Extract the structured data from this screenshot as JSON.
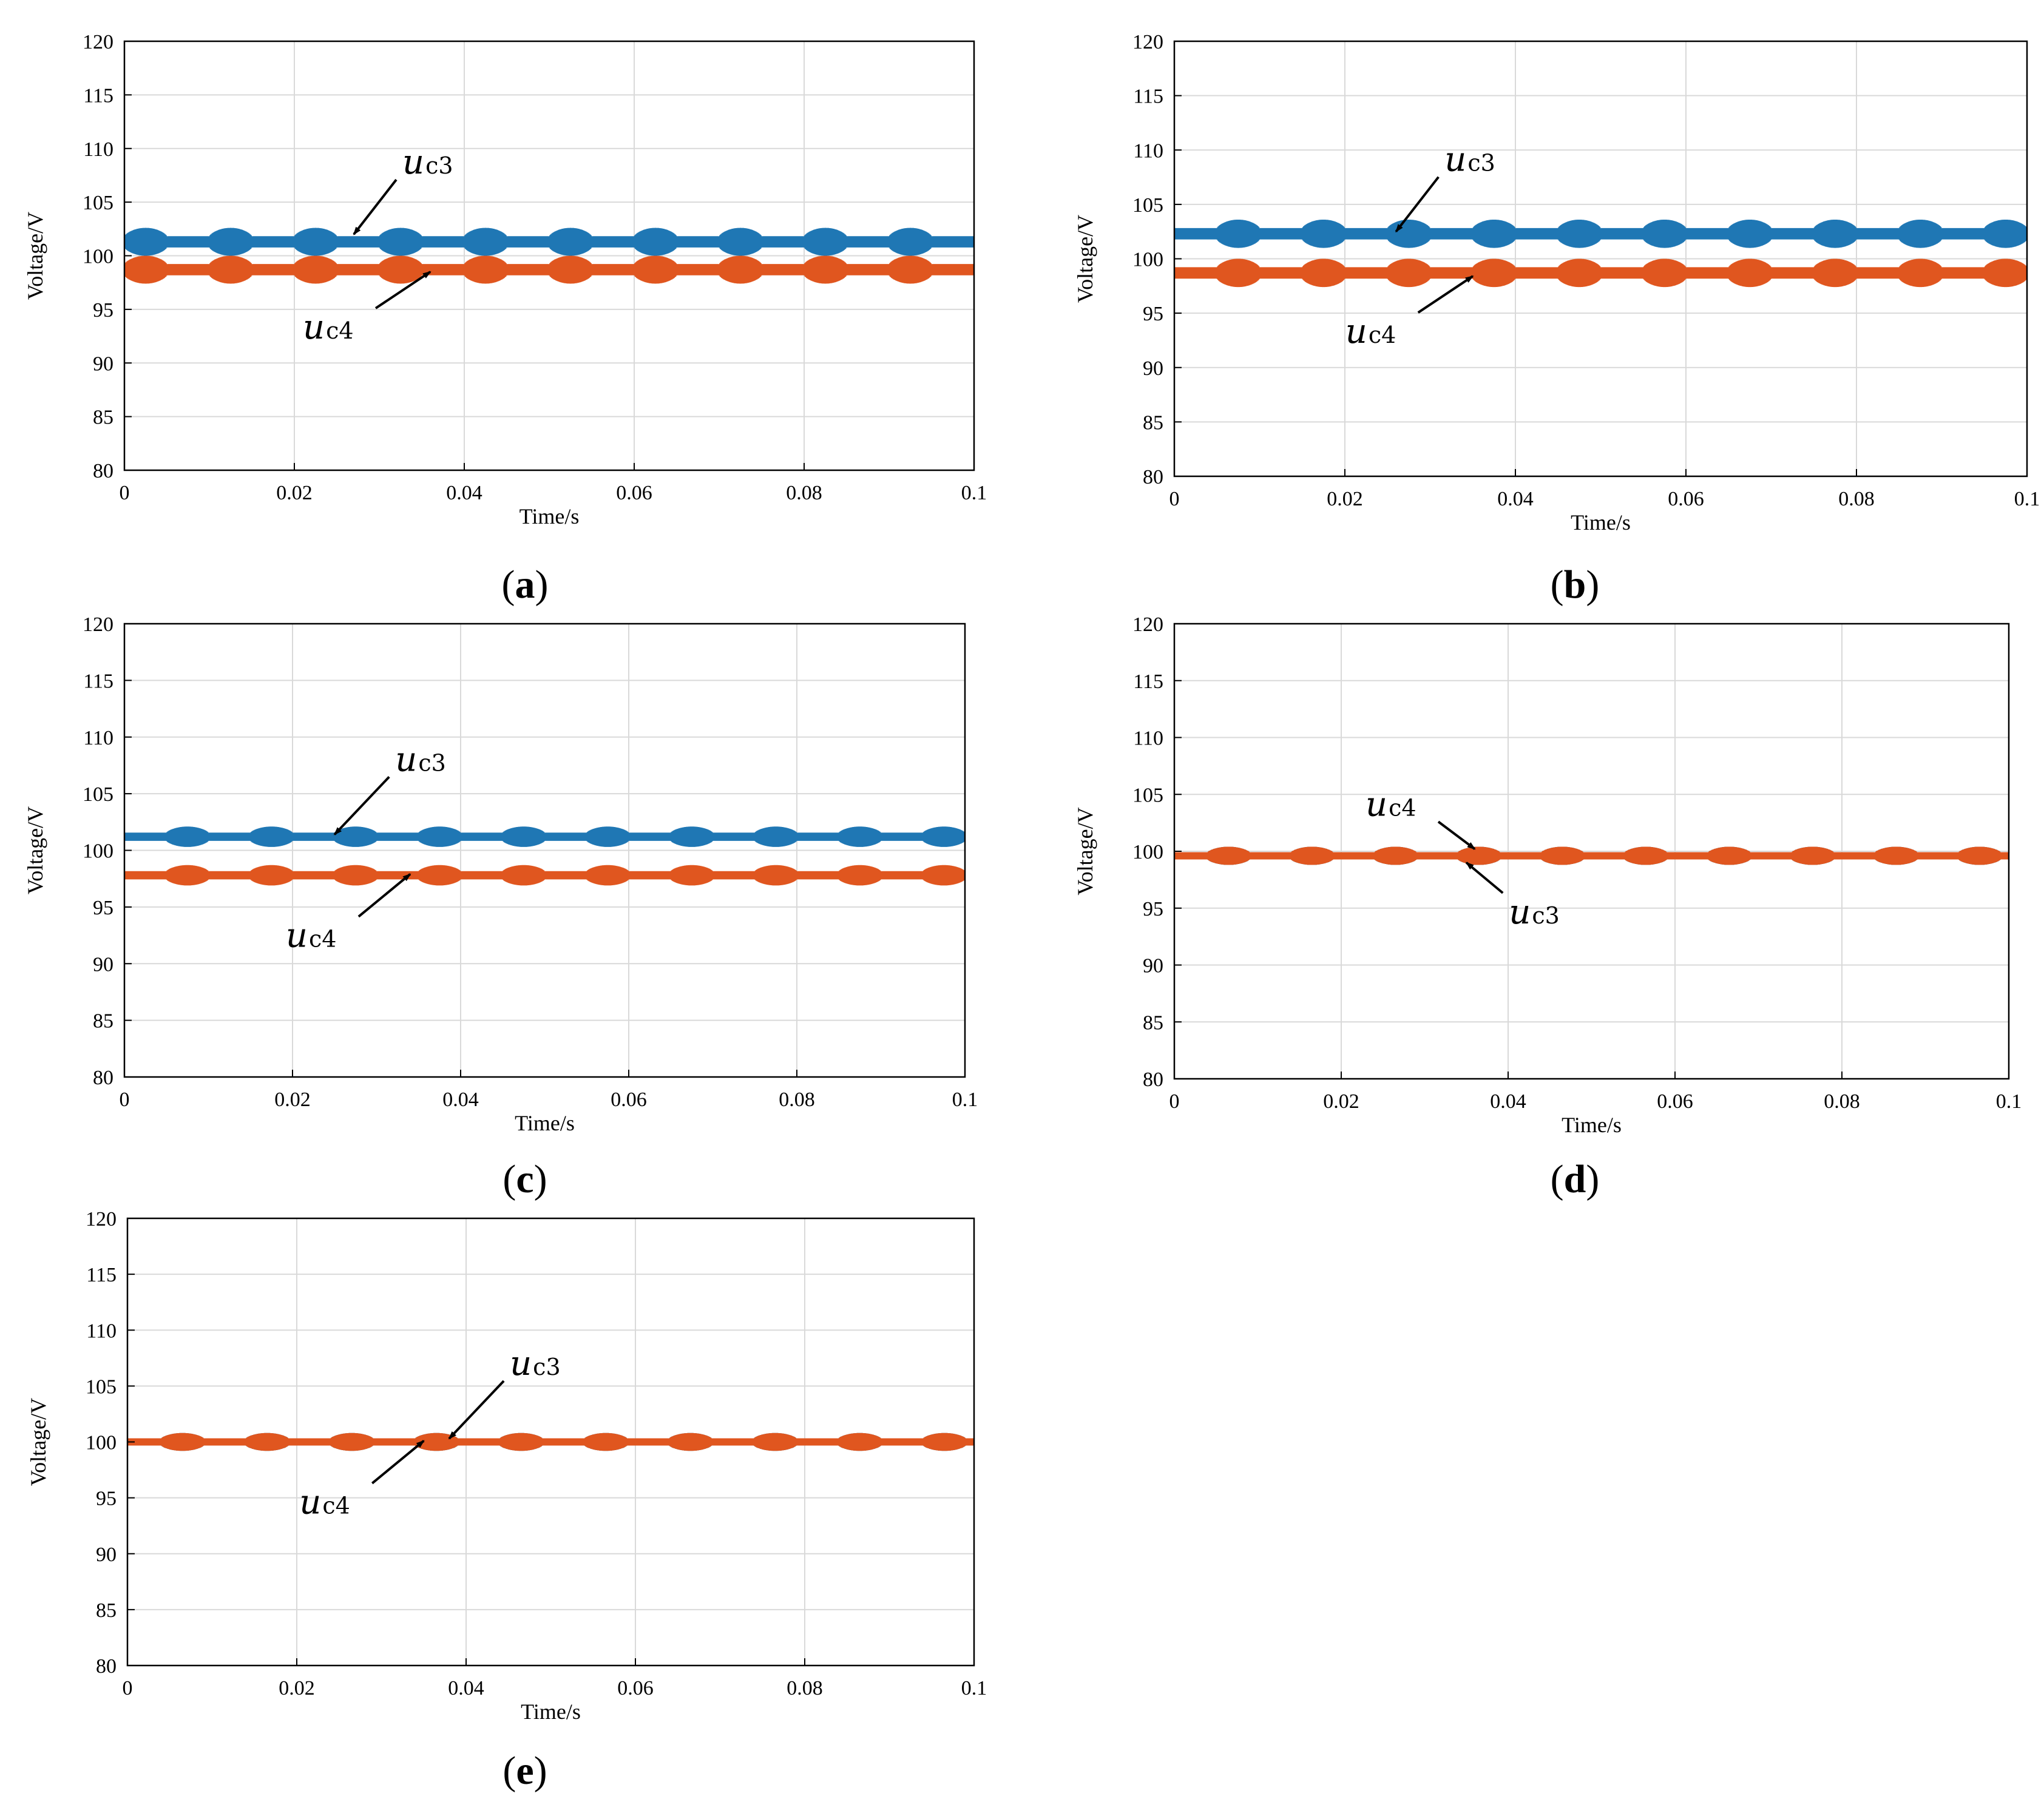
{
  "figure": {
    "colors": {
      "series1": "#1f77b4",
      "series2": "#e0561f",
      "grid": "#d9d9d9",
      "axis": "#000000"
    }
  },
  "chart_data": [
    {
      "id": "a",
      "type": "line",
      "caption": "a",
      "caption_left": "(",
      "caption_right": ")",
      "xlabel": "Time/s",
      "ylabel": "Voltage/V",
      "xlim": [
        0,
        0.1
      ],
      "ylim": [
        80,
        120
      ],
      "xticks": [
        "0",
        "0.02",
        "0.04",
        "0.06",
        "0.08",
        "0.1"
      ],
      "yticks": [
        "80",
        "85",
        "90",
        "95",
        "100",
        "105",
        "110",
        "115",
        "120"
      ],
      "grid": true,
      "series": [
        {
          "name": "uc3",
          "color": "#1f77b4",
          "mean": 101.3,
          "ripple_amplitude": 1.3,
          "period_s": 0.01,
          "phase_s": 0.0
        },
        {
          "name": "uc4",
          "color": "#e0561f",
          "mean": 98.7,
          "ripple_amplitude": 1.3,
          "period_s": 0.01,
          "phase_s": 0.0
        }
      ],
      "annotations": [
        {
          "series": "uc3",
          "base": "u",
          "sub": "c3",
          "point": [
            0.027,
            102.0
          ]
        },
        {
          "series": "uc4",
          "base": "u",
          "sub": "c4",
          "point": [
            0.036,
            98.5
          ]
        }
      ]
    },
    {
      "id": "b",
      "type": "line",
      "caption": "b",
      "caption_left": "(",
      "caption_right": ")",
      "xlabel": "Time/s",
      "ylabel": "Voltage/V",
      "xlim": [
        0,
        0.1
      ],
      "ylim": [
        80,
        120
      ],
      "xticks": [
        "0",
        "0.02",
        "0.04",
        "0.06",
        "0.08",
        "0.1"
      ],
      "yticks": [
        "80",
        "85",
        "90",
        "95",
        "100",
        "105",
        "110",
        "115",
        "120"
      ],
      "grid": true,
      "series": [
        {
          "name": "uc3",
          "color": "#1f77b4",
          "mean": 102.3,
          "ripple_amplitude": 1.3,
          "period_s": 0.01,
          "phase_s": 0.005
        },
        {
          "name": "uc4",
          "color": "#e0561f",
          "mean": 98.7,
          "ripple_amplitude": 1.3,
          "period_s": 0.01,
          "phase_s": 0.005
        }
      ],
      "annotations": [
        {
          "series": "uc3",
          "base": "u",
          "sub": "c3",
          "point": [
            0.026,
            102.5
          ]
        },
        {
          "series": "uc4",
          "base": "u",
          "sub": "c4",
          "point": [
            0.035,
            98.4
          ]
        }
      ]
    },
    {
      "id": "c",
      "type": "line",
      "caption": "c",
      "caption_left": "(",
      "caption_right": ")",
      "xlabel": "Time/s",
      "ylabel": "Voltage/V",
      "xlim": [
        0,
        0.1
      ],
      "ylim": [
        80,
        120
      ],
      "xticks": [
        "0",
        "0.02",
        "0.04",
        "0.06",
        "0.08",
        "0.1"
      ],
      "yticks": [
        "80",
        "85",
        "90",
        "95",
        "100",
        "105",
        "110",
        "115",
        "120"
      ],
      "grid": true,
      "series": [
        {
          "name": "uc3",
          "color": "#1f77b4",
          "mean": 101.2,
          "ripple_amplitude": 0.9,
          "period_s": 0.01,
          "phase_s": 0.005
        },
        {
          "name": "uc4",
          "color": "#e0561f",
          "mean": 97.8,
          "ripple_amplitude": 0.9,
          "period_s": 0.01,
          "phase_s": 0.005
        }
      ],
      "annotations": [
        {
          "series": "uc3",
          "base": "u",
          "sub": "c3",
          "point": [
            0.025,
            101.4
          ]
        },
        {
          "series": "uc4",
          "base": "u",
          "sub": "c4",
          "point": [
            0.034,
            97.9
          ]
        }
      ]
    },
    {
      "id": "d",
      "type": "line",
      "caption": "d",
      "caption_left": "(",
      "caption_right": ")",
      "xlabel": "Time/s",
      "ylabel": "Voltage/V",
      "xlim": [
        0,
        0.1
      ],
      "ylim": [
        80,
        120
      ],
      "xticks": [
        "0",
        "0.02",
        "0.04",
        "0.06",
        "0.08",
        "0.1"
      ],
      "yticks": [
        "80",
        "85",
        "90",
        "95",
        "100",
        "105",
        "110",
        "115",
        "120"
      ],
      "grid": true,
      "series": [
        {
          "name": "uc3",
          "color": "#1f77b4",
          "mean": 99.6,
          "ripple_amplitude": 0.8,
          "period_s": 0.01,
          "phase_s": 0.006
        },
        {
          "name": "uc4",
          "color": "#e0561f",
          "mean": 99.6,
          "ripple_amplitude": 0.8,
          "period_s": 0.01,
          "phase_s": 0.006
        }
      ],
      "annotations": [
        {
          "series": "uc4",
          "base": "u",
          "sub": "c4",
          "point": [
            0.036,
            100.2
          ]
        },
        {
          "series": "uc3",
          "base": "u",
          "sub": "c3",
          "point": [
            0.035,
            99.0
          ]
        }
      ]
    },
    {
      "id": "e",
      "type": "line",
      "caption": "e",
      "caption_left": "(",
      "caption_right": ")",
      "xlabel": "Time/s",
      "ylabel": "Voltage/V",
      "xlim": [
        0,
        0.1
      ],
      "ylim": [
        80,
        120
      ],
      "xticks": [
        "0",
        "0.02",
        "0.04",
        "0.06",
        "0.08",
        "0.1"
      ],
      "yticks": [
        "80",
        "85",
        "90",
        "95",
        "100",
        "105",
        "110",
        "115",
        "120"
      ],
      "grid": true,
      "series": [
        {
          "name": "uc3",
          "color": "#1f77b4",
          "mean": 100.0,
          "ripple_amplitude": 0.8,
          "period_s": 0.01,
          "phase_s": 0.006
        },
        {
          "name": "uc4",
          "color": "#e0561f",
          "mean": 100.0,
          "ripple_amplitude": 0.8,
          "period_s": 0.01,
          "phase_s": 0.006
        }
      ],
      "annotations": [
        {
          "series": "uc3",
          "base": "u",
          "sub": "c3",
          "point": [
            0.038,
            100.3
          ]
        },
        {
          "series": "uc4",
          "base": "u",
          "sub": "c4",
          "point": [
            0.035,
            100.1
          ]
        }
      ]
    }
  ]
}
